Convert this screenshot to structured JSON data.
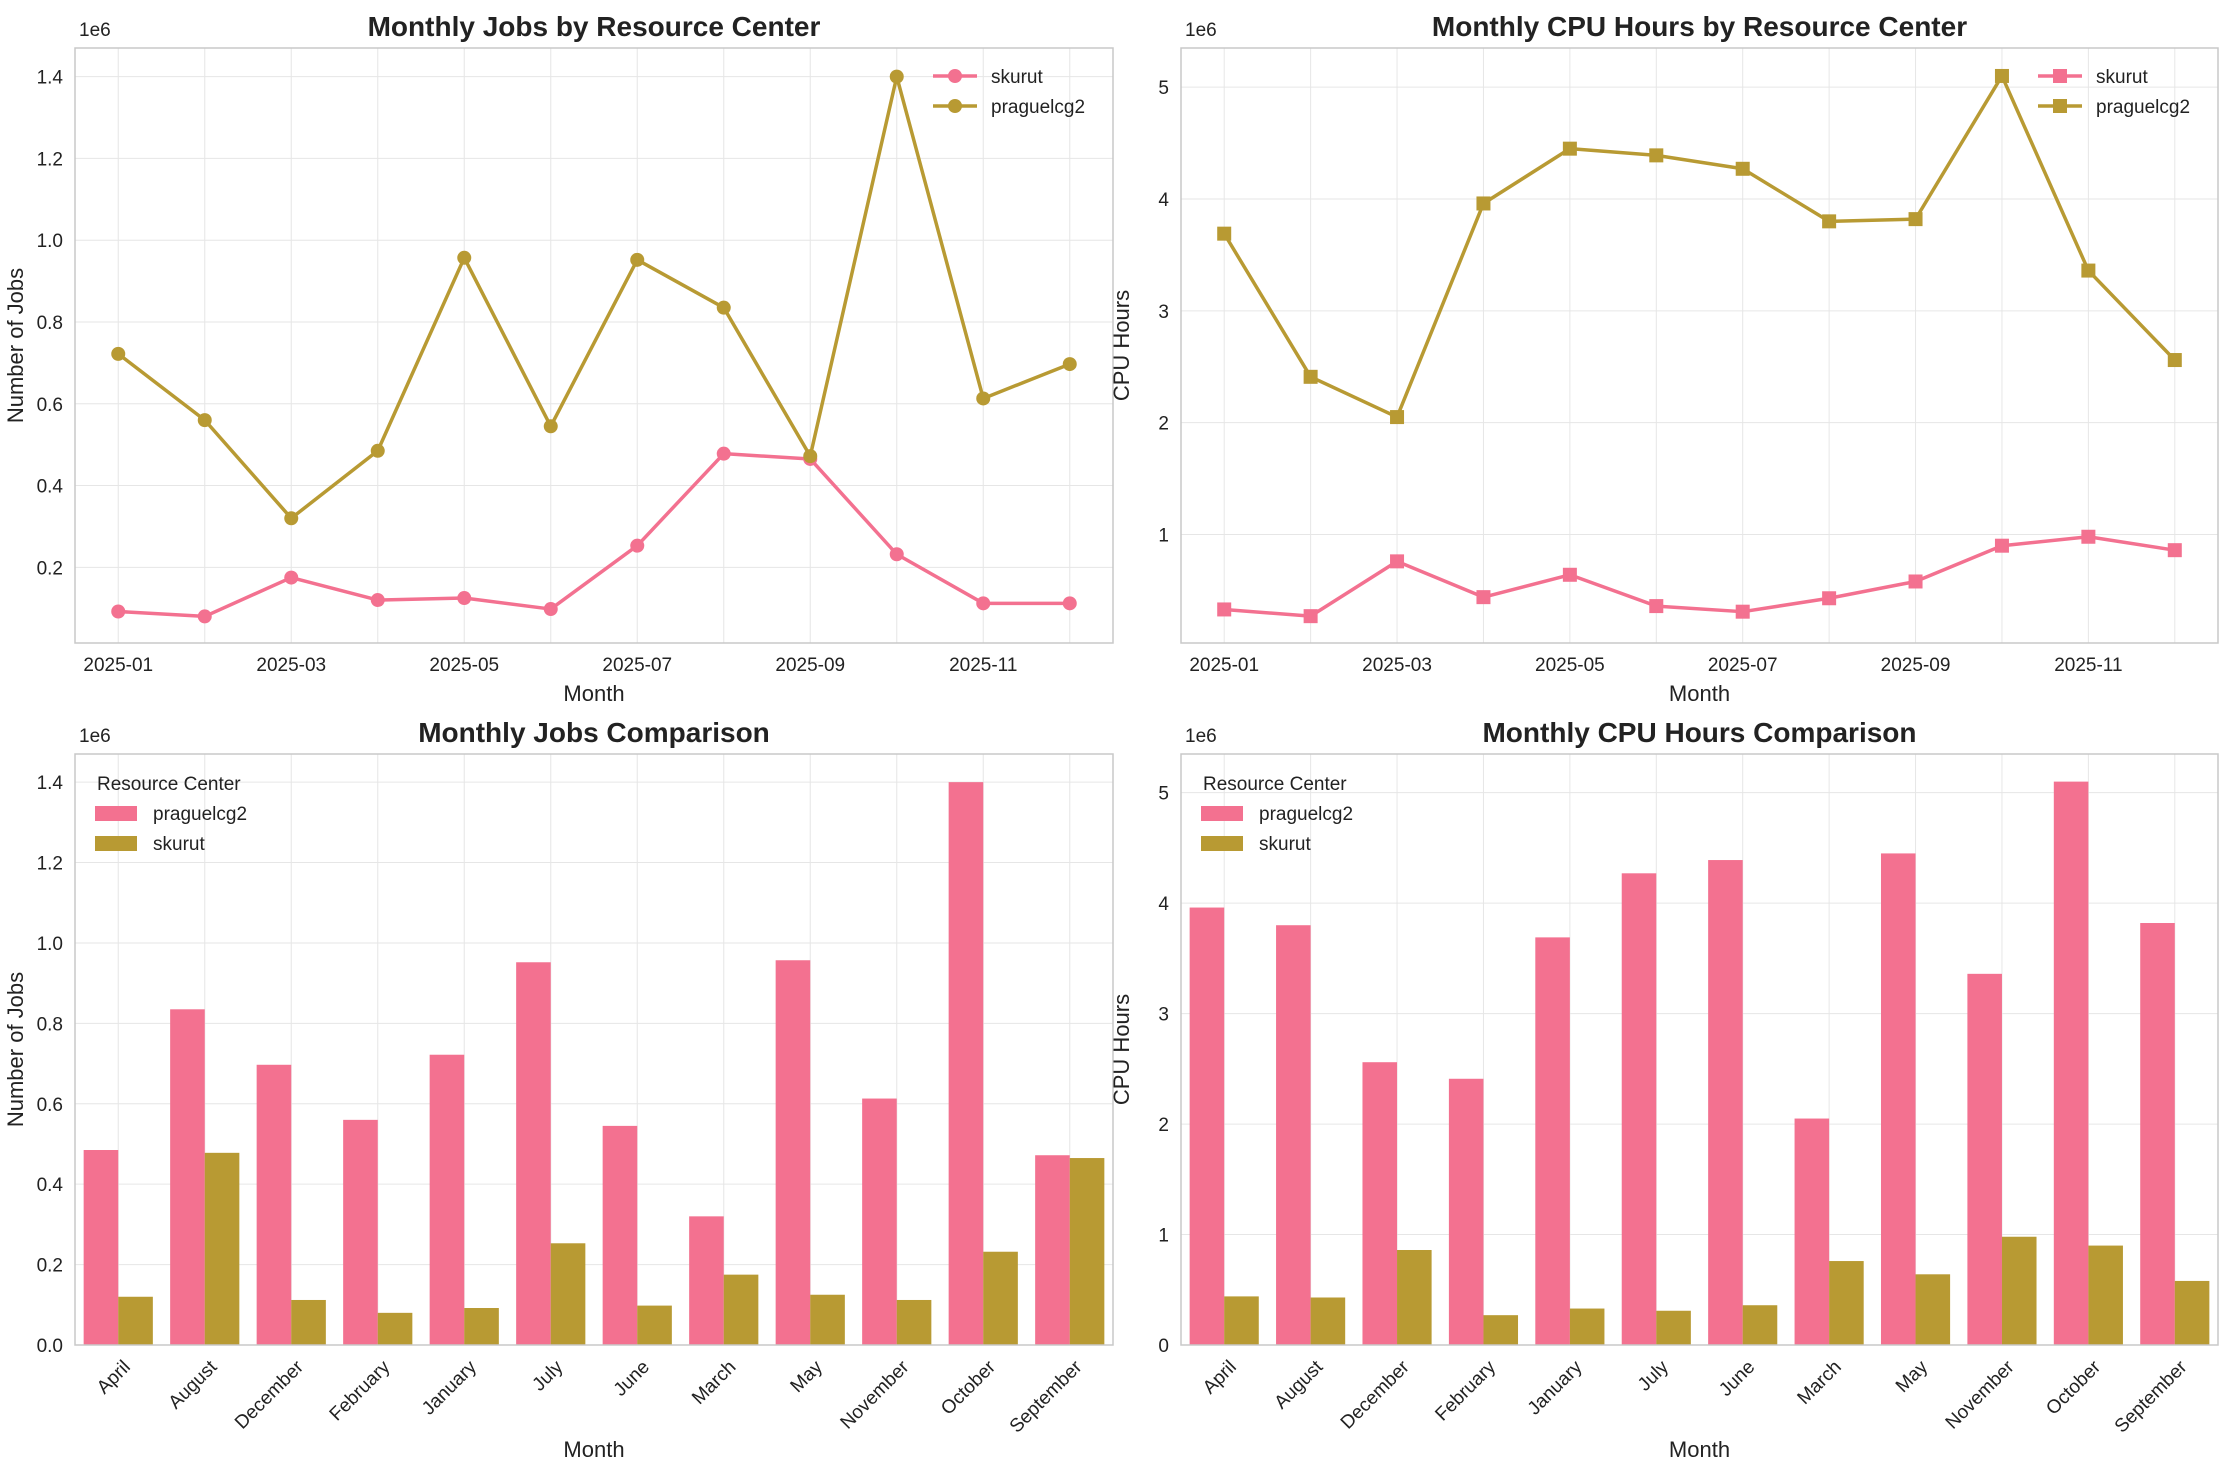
{
  "colors": {
    "skurut": "#f37190",
    "praguelcg2": "#b89a33"
  },
  "chart_data": [
    {
      "type": "line",
      "title": "Monthly Jobs by Resource Center",
      "xlabel": "Month",
      "ylabel": "Number of Jobs",
      "scale_label": "1e6",
      "marker": "circle",
      "x": [
        1,
        2,
        3,
        4,
        5,
        6,
        7,
        8,
        9,
        10,
        11,
        12
      ],
      "x_ticks": [
        1,
        3,
        5,
        7,
        9,
        11
      ],
      "x_tick_labels": [
        "2025-01",
        "2025-03",
        "2025-05",
        "2025-07",
        "2025-09",
        "2025-11"
      ],
      "xlim": [
        0.5,
        12.5
      ],
      "ylim": [
        0.015,
        1.47
      ],
      "y_ticks": [
        0.2,
        0.4,
        0.6,
        0.8,
        1.0,
        1.2,
        1.4
      ],
      "y_tick_labels": [
        "0.2",
        "0.4",
        "0.6",
        "0.8",
        "1.0",
        "1.2",
        "1.4"
      ],
      "legend_position": "top-right",
      "series": [
        {
          "name": "skurut",
          "color": "#f37190",
          "values": [
            0.092,
            0.08,
            0.175,
            0.12,
            0.125,
            0.098,
            0.253,
            0.478,
            0.465,
            0.232,
            0.112,
            0.112
          ]
        },
        {
          "name": "praguelcg2",
          "color": "#b89a33",
          "values": [
            0.722,
            0.56,
            0.32,
            0.485,
            0.957,
            0.545,
            0.952,
            0.835,
            0.472,
            1.4,
            0.613,
            0.697
          ]
        }
      ]
    },
    {
      "type": "line",
      "title": "Monthly CPU Hours by Resource Center",
      "xlabel": "Month",
      "ylabel": "CPU Hours",
      "scale_label": "1e6",
      "marker": "square",
      "x": [
        1,
        2,
        3,
        4,
        5,
        6,
        7,
        8,
        9,
        10,
        11,
        12
      ],
      "x_ticks": [
        1,
        3,
        5,
        7,
        9,
        11
      ],
      "x_tick_labels": [
        "2025-01",
        "2025-03",
        "2025-05",
        "2025-07",
        "2025-09",
        "2025-11"
      ],
      "xlim": [
        0.5,
        12.5
      ],
      "ylim": [
        0.03,
        5.35
      ],
      "y_ticks": [
        1,
        2,
        3,
        4,
        5
      ],
      "y_tick_labels": [
        "1",
        "2",
        "3",
        "4",
        "5"
      ],
      "legend_position": "top-right",
      "series": [
        {
          "name": "skurut",
          "color": "#f37190",
          "values": [
            0.33,
            0.27,
            0.76,
            0.44,
            0.64,
            0.36,
            0.31,
            0.43,
            0.58,
            0.9,
            0.98,
            0.86
          ]
        },
        {
          "name": "praguelcg2",
          "color": "#b89a33",
          "values": [
            3.69,
            2.41,
            2.05,
            3.96,
            4.45,
            4.39,
            4.27,
            3.8,
            3.82,
            5.1,
            3.36,
            2.56
          ]
        }
      ]
    },
    {
      "type": "bar",
      "title": "Monthly Jobs Comparison",
      "xlabel": "Month",
      "ylabel": "Number of Jobs",
      "scale_label": "1e6",
      "categories": [
        "April",
        "August",
        "December",
        "February",
        "January",
        "July",
        "June",
        "March",
        "May",
        "November",
        "October",
        "September"
      ],
      "ylim": [
        0,
        1.47
      ],
      "y_ticks": [
        0,
        0.2,
        0.4,
        0.6,
        0.8,
        1.0,
        1.2,
        1.4
      ],
      "y_tick_labels": [
        "0.0",
        "0.2",
        "0.4",
        "0.6",
        "0.8",
        "1.0",
        "1.2",
        "1.4"
      ],
      "legend_title": "Resource Center",
      "legend_position": "top-left",
      "series": [
        {
          "name": "praguelcg2",
          "color": "#f37190",
          "values": [
            0.485,
            0.835,
            0.697,
            0.56,
            0.722,
            0.952,
            0.545,
            0.32,
            0.957,
            0.613,
            1.4,
            0.472
          ]
        },
        {
          "name": "skurut",
          "color": "#b89a33",
          "values": [
            0.12,
            0.478,
            0.112,
            0.08,
            0.092,
            0.253,
            0.098,
            0.175,
            0.125,
            0.112,
            0.232,
            0.465
          ]
        }
      ]
    },
    {
      "type": "bar",
      "title": "Monthly CPU Hours Comparison",
      "xlabel": "Month",
      "ylabel": "CPU Hours",
      "scale_label": "1e6",
      "categories": [
        "April",
        "August",
        "December",
        "February",
        "January",
        "July",
        "June",
        "March",
        "May",
        "November",
        "October",
        "September"
      ],
      "ylim": [
        0,
        5.35
      ],
      "y_ticks": [
        0,
        1,
        2,
        3,
        4,
        5
      ],
      "y_tick_labels": [
        "0",
        "1",
        "2",
        "3",
        "4",
        "5"
      ],
      "legend_title": "Resource Center",
      "legend_position": "top-left",
      "series": [
        {
          "name": "praguelcg2",
          "color": "#f37190",
          "values": [
            3.96,
            3.8,
            2.56,
            2.41,
            3.69,
            4.27,
            4.39,
            2.05,
            4.45,
            3.36,
            5.1,
            3.82
          ]
        },
        {
          "name": "skurut",
          "color": "#b89a33",
          "values": [
            0.44,
            0.43,
            0.86,
            0.27,
            0.33,
            0.31,
            0.36,
            0.76,
            0.64,
            0.98,
            0.9,
            0.58
          ]
        }
      ]
    }
  ]
}
